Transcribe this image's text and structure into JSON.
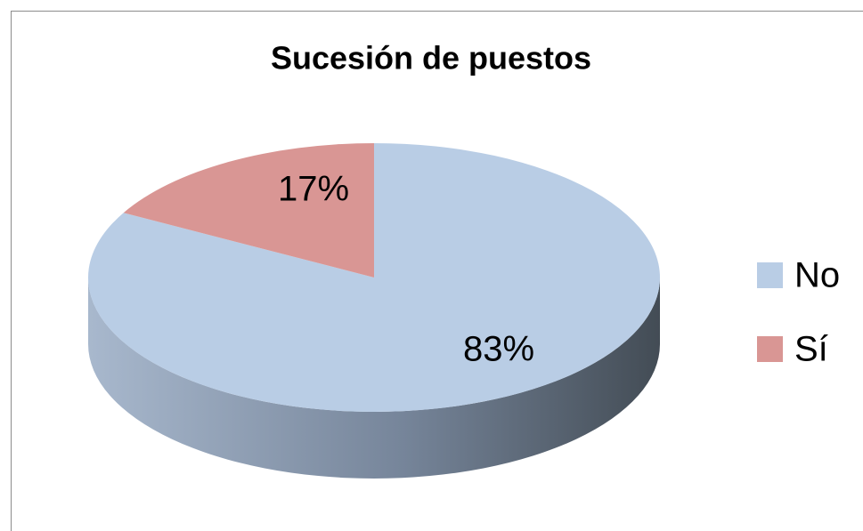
{
  "chart_data": {
    "type": "pie3d",
    "title": "Sucesión de puestos",
    "categories": [
      "No",
      "Sí"
    ],
    "values": [
      83,
      17
    ],
    "value_labels": [
      "83%",
      "17%"
    ],
    "colors": [
      "#b9cde5",
      "#d99694"
    ],
    "legend": "right"
  }
}
